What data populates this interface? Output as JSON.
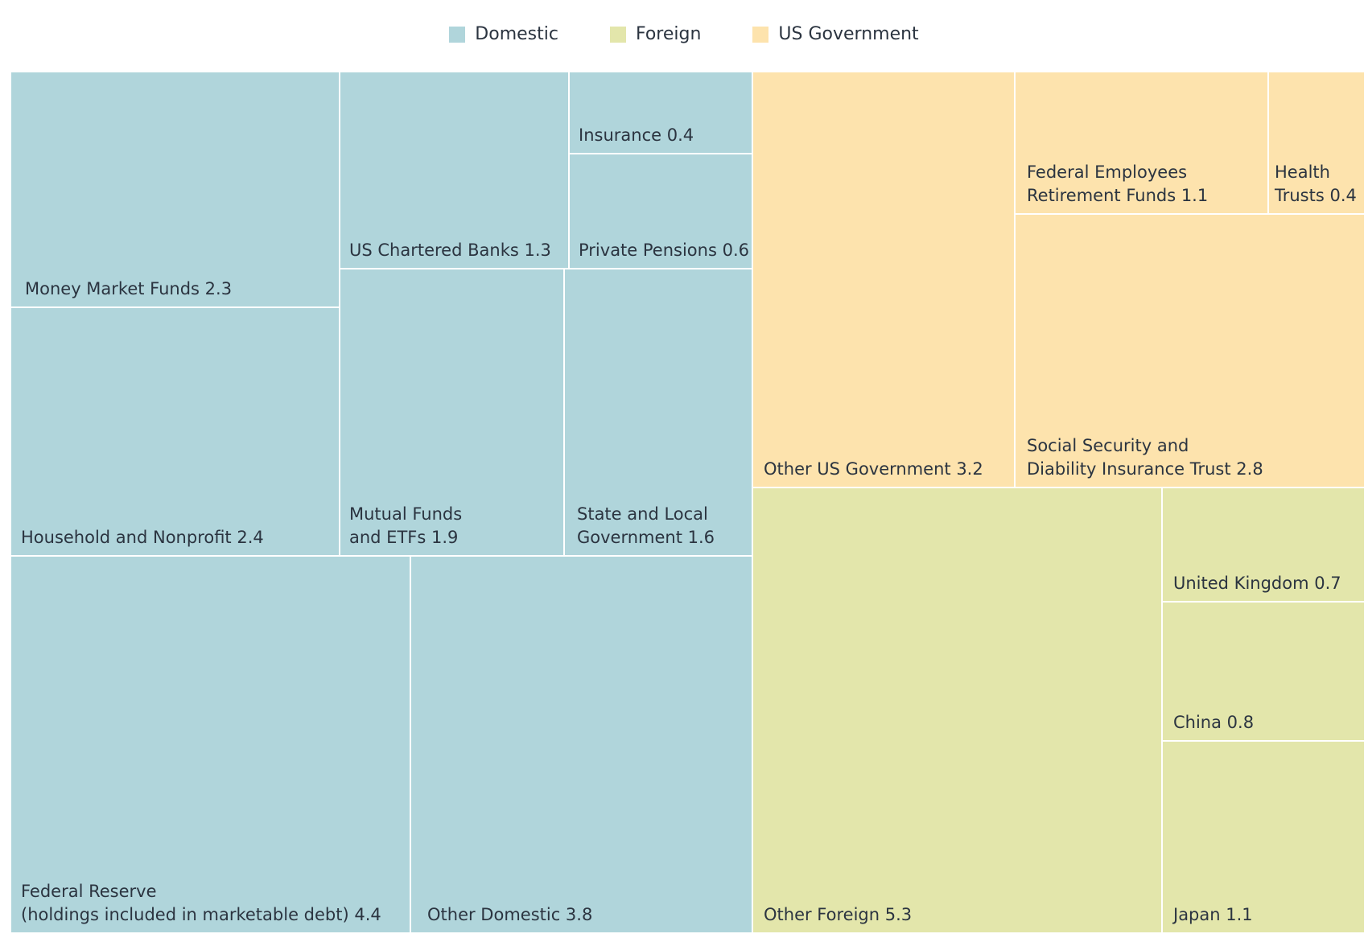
{
  "chart_data": {
    "type": "treemap",
    "legend_placement": "top-center",
    "groups": [
      {
        "name": "Domestic",
        "color": "#b0d5db"
      },
      {
        "name": "Foreign",
        "color": "#e3e6ab"
      },
      {
        "name": "US Government",
        "color": "#fde3ad"
      }
    ],
    "items": [
      {
        "key": "money-market-funds",
        "group": "Domestic",
        "lines": [
          "Money Market Funds 2.3"
        ],
        "value": 2.3
      },
      {
        "key": "household-and-nonprofit",
        "group": "Domestic",
        "lines": [
          "Household and Nonprofit 2.4"
        ],
        "value": 2.4
      },
      {
        "key": "us-chartered-banks",
        "group": "Domestic",
        "lines": [
          "US Chartered Banks 1.3"
        ],
        "value": 1.3
      },
      {
        "key": "insurance",
        "group": "Domestic",
        "lines": [
          "Insurance 0.4"
        ],
        "value": 0.4
      },
      {
        "key": "private-pensions",
        "group": "Domestic",
        "lines": [
          "Private Pensions 0.6"
        ],
        "value": 0.6
      },
      {
        "key": "mutual-funds-and-etfs",
        "group": "Domestic",
        "lines": [
          "Mutual Funds",
          "and ETFs 1.9"
        ],
        "value": 1.9
      },
      {
        "key": "state-and-local-government",
        "group": "Domestic",
        "lines": [
          "State and Local",
          "Government 1.6"
        ],
        "value": 1.6
      },
      {
        "key": "federal-reserve",
        "group": "Domestic",
        "lines": [
          "Federal Reserve",
          "(holdings included in marketable debt) 4.4"
        ],
        "value": 4.4
      },
      {
        "key": "other-domestic",
        "group": "Domestic",
        "lines": [
          "Other Domestic 3.8"
        ],
        "value": 3.8
      },
      {
        "key": "other-us-government",
        "group": "US Government",
        "lines": [
          "Other US Government 3.2"
        ],
        "value": 3.2
      },
      {
        "key": "federal-employees-retirement-funds",
        "group": "US Government",
        "lines": [
          "Federal Employees",
          "Retirement Funds 1.1"
        ],
        "value": 1.1
      },
      {
        "key": "health-trusts",
        "group": "US Government",
        "lines": [
          "Health",
          "Trusts 0.4"
        ],
        "value": 0.4
      },
      {
        "key": "social-security-and-disability-insurance-trust",
        "group": "US Government",
        "lines": [
          "Social Security and",
          "Diability Insurance Trust 2.8"
        ],
        "value": 2.8
      },
      {
        "key": "other-foreign",
        "group": "Foreign",
        "lines": [
          "Other Foreign 5.3"
        ],
        "value": 5.3
      },
      {
        "key": "united-kingdom",
        "group": "Foreign",
        "lines": [
          "United Kingdom 0.7"
        ],
        "value": 0.7
      },
      {
        "key": "china",
        "group": "Foreign",
        "lines": [
          "China 0.8"
        ],
        "value": 0.8
      },
      {
        "key": "japan",
        "group": "Foreign",
        "lines": [
          "Japan 1.1"
        ],
        "value": 1.1
      }
    ]
  }
}
